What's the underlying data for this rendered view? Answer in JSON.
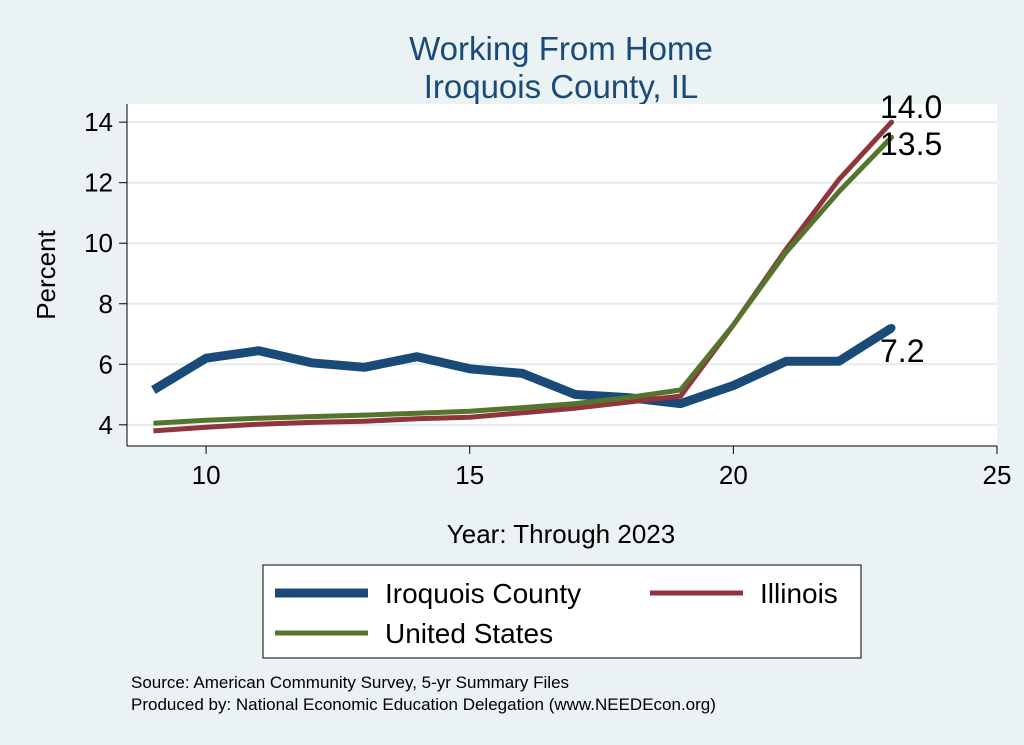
{
  "chart_data": {
    "type": "line",
    "title": [
      "Working From Home",
      "Iroquois County, IL"
    ],
    "xlabel": "Year: Through 2023",
    "ylabel": "Percent",
    "xlim": [
      8.5,
      25
    ],
    "ylim": [
      3.3,
      14.6
    ],
    "xticks": [
      10,
      15,
      20,
      25
    ],
    "yticks": [
      4,
      6,
      8,
      10,
      12,
      14
    ],
    "grid": true,
    "legend_position": "bottom",
    "x": [
      9,
      10,
      11,
      12,
      13,
      14,
      15,
      16,
      17,
      18,
      19,
      20,
      21,
      22,
      23
    ],
    "series": [
      {
        "name": "Iroquois County",
        "color": "#1a4a78",
        "values": [
          5.15,
          6.2,
          6.45,
          6.05,
          5.9,
          6.25,
          5.85,
          5.7,
          5.0,
          4.9,
          4.7,
          5.3,
          6.1,
          6.1,
          7.2
        ]
      },
      {
        "name": "Illinois",
        "color": "#90353b",
        "values": [
          3.8,
          3.92,
          4.02,
          4.08,
          4.12,
          4.2,
          4.25,
          4.4,
          4.55,
          4.75,
          4.95,
          7.3,
          9.8,
          12.1,
          14.0
        ]
      },
      {
        "name": "United States",
        "color": "#55752f",
        "values": [
          4.05,
          4.15,
          4.22,
          4.27,
          4.32,
          4.38,
          4.45,
          4.57,
          4.7,
          4.9,
          5.15,
          7.3,
          9.7,
          11.7,
          13.5
        ]
      }
    ],
    "end_labels": [
      "14.0",
      "13.5",
      "7.2"
    ]
  },
  "notes": {
    "source": "Source: American Community Survey, 5-yr Summary Files",
    "produced_by": "Produced by: National Economic Education Delegation (www.NEEDEcon.org)"
  }
}
